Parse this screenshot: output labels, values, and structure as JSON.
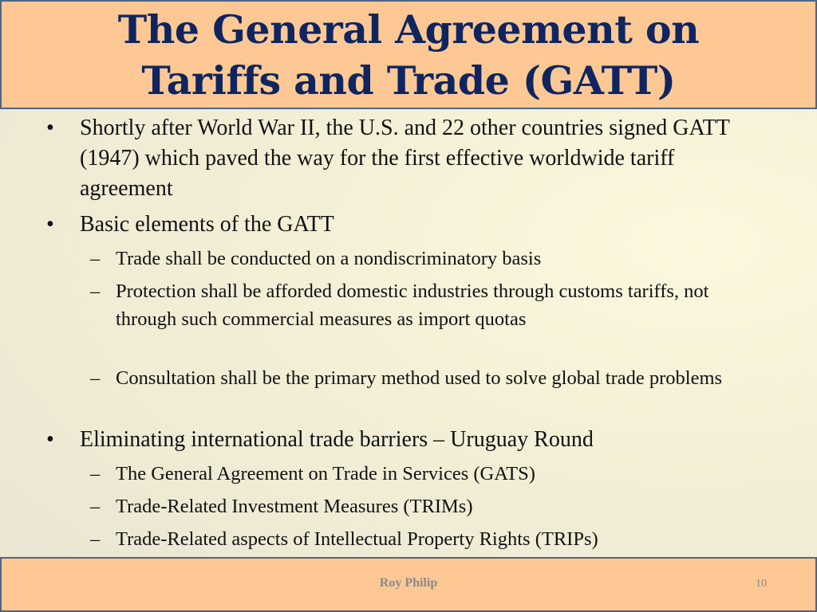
{
  "slide": {
    "title_line1": "The General Agreement on",
    "title_line2": "Tariffs and Trade (GATT)",
    "colors": {
      "header_bg": "#fec895",
      "title": "#0f2560",
      "border": "#4e6584"
    },
    "bullets": [
      {
        "level": 1,
        "text": "Shortly after World War II, the U.S. and 22 other countries signed GATT  (1947) which paved the way for the first effective worldwide tariff agreement"
      },
      {
        "level": 1,
        "text": "Basic elements of the GATT"
      },
      {
        "level": 2,
        "text": "Trade shall be conducted on a nondiscriminatory basis"
      },
      {
        "level": 2,
        "text": "Protection shall be afforded domestic industries through customs tariffs, not through such commercial measures as import quotas"
      },
      {
        "level": 2,
        "text": "Consultation shall be the primary method used to solve global trade problems"
      },
      {
        "level": 1,
        "text": "Eliminating international trade barriers – Uruguay Round"
      },
      {
        "level": 2,
        "text": "The General Agreement on Trade in Services (GATS)"
      },
      {
        "level": 2,
        "text": "Trade-Related Investment Measures (TRIMs)"
      },
      {
        "level": 2,
        "text": "Trade-Related aspects of Intellectual Property Rights (TRIPs)"
      }
    ],
    "bullet_marker": "•",
    "dash_marker": "–",
    "footer": {
      "author": "Roy Philip",
      "page_number": "10"
    }
  }
}
